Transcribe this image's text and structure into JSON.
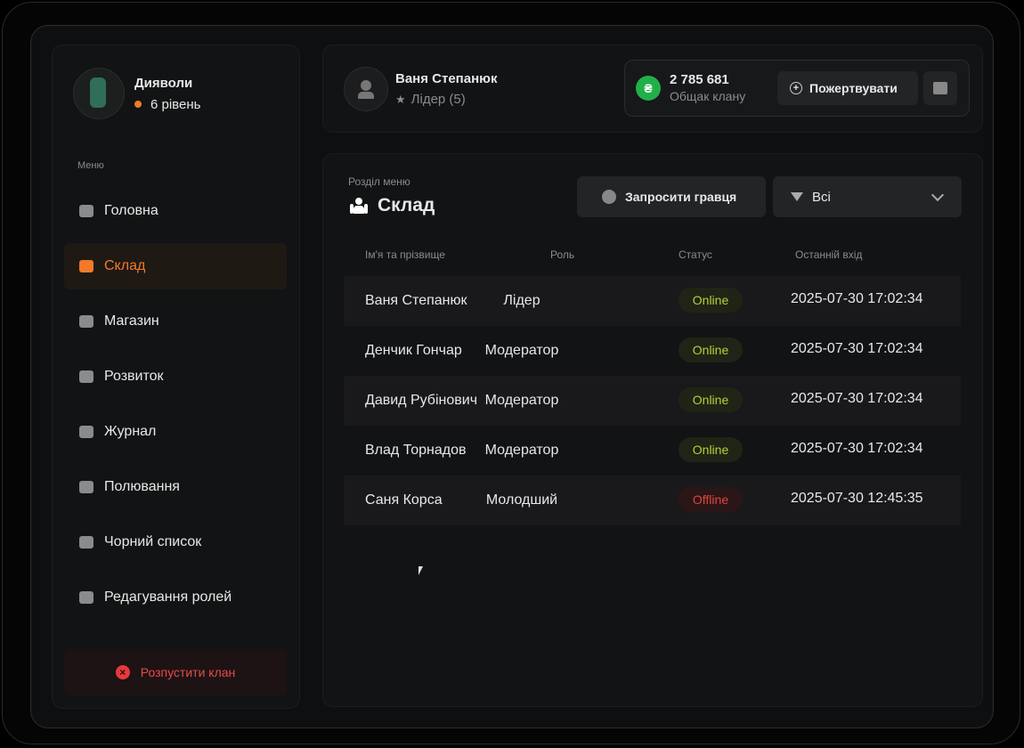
{
  "clan": {
    "name": "Дияволи",
    "level": "6 рівень"
  },
  "menu": {
    "label": "Меню",
    "items": [
      "Головна",
      "Склад",
      "Магазин",
      "Розвиток",
      "Журнал",
      "Полювання",
      "Чорний список",
      "Редагування ролей"
    ],
    "active": 1
  },
  "disband": "Розпустити клан",
  "user": {
    "name": "Ваня Степанюк",
    "role": "Лідер (5)"
  },
  "bank": {
    "amount": "2 785 681",
    "label": "Общак клану",
    "donate": "Пожертвувати"
  },
  "section": {
    "label": "Розділ меню",
    "title": "Склад"
  },
  "invite": "Запросити гравця",
  "filter": "Всі",
  "table": {
    "columns": [
      "Ім'я та прізвище",
      "Роль",
      "Статус",
      "Останній вхід"
    ],
    "rows": [
      {
        "name": "Ваня Степанюк",
        "role": "Лідер",
        "status": "Online",
        "last_login": "2025-07-30 17:02:34",
        "online": true
      },
      {
        "name": "Денчик Гончар",
        "role": "Модератор",
        "status": "Online",
        "last_login": "2025-07-30 17:02:34",
        "online": true
      },
      {
        "name": "Давид Рубінович",
        "role": "Модератор",
        "status": "Online",
        "last_login": "2025-07-30 17:02:34",
        "online": true
      },
      {
        "name": "Влад Торнадов",
        "role": "Модератор",
        "status": "Online",
        "last_login": "2025-07-30 17:02:34",
        "online": true
      },
      {
        "name": "Саня Корса",
        "role": "Молодший",
        "status": "Offline",
        "last_login": "2025-07-30 12:45:35",
        "online": false
      }
    ]
  }
}
